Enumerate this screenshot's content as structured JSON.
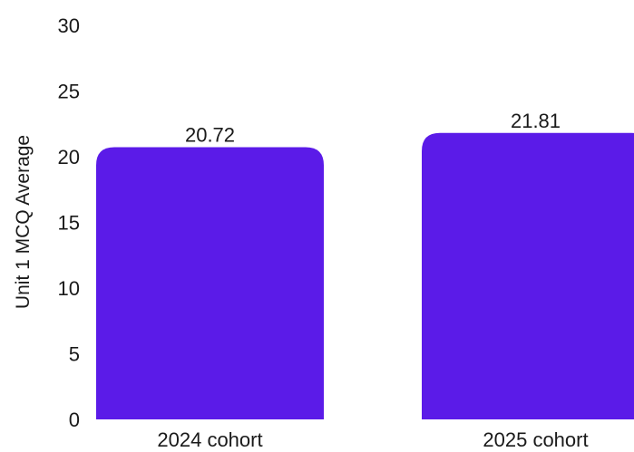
{
  "chart_data": {
    "type": "bar",
    "title": "",
    "xlabel": "",
    "ylabel": "Unit 1 MCQ Average",
    "categories": [
      "2024 cohort",
      "2025 cohort"
    ],
    "values": [
      20.72,
      21.81
    ],
    "value_labels": [
      "20.72",
      "21.81"
    ],
    "ylim": [
      0,
      30
    ],
    "yticks": [
      0,
      5,
      10,
      15,
      20,
      25,
      30
    ],
    "grid": false,
    "legend": "none",
    "bar_color": "#5b1be8"
  }
}
